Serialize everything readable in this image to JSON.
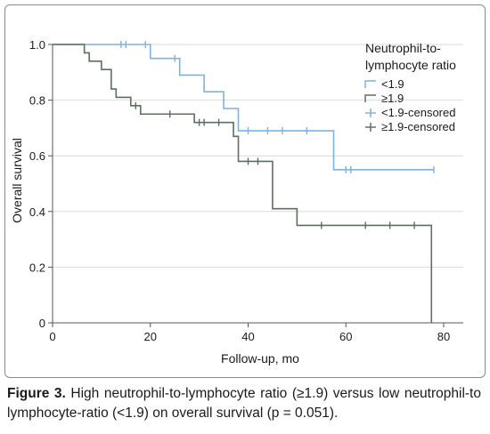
{
  "chart_data": {
    "type": "line",
    "xlabel": "Follow-up, mo",
    "ylabel": "Overall survival",
    "xlim": [
      0,
      80
    ],
    "ylim": [
      0,
      1.0
    ],
    "x_ticks": [
      "0",
      "20",
      "40",
      "60",
      "80"
    ],
    "y_ticks": [
      "0",
      "0.2",
      "0.4",
      "0.6",
      "0.8",
      "1.0"
    ],
    "grid": "horizontal",
    "legend_placement": "top-right",
    "legend_title": "Neutrophil-to-\nlymphocyte ratio",
    "legend_title_lines": [
      "Neutrophil-to-",
      "lymphocyte ratio"
    ],
    "series": [
      {
        "name": "<1.9",
        "censored_name": "<1.9-censored",
        "color": "#7fb2dc",
        "steps": [
          [
            0,
            1.0
          ],
          [
            20,
            0.95
          ],
          [
            26,
            0.89
          ],
          [
            31,
            0.83
          ],
          [
            35,
            0.77
          ],
          [
            38,
            0.69
          ],
          [
            57.5,
            0.55
          ],
          [
            78,
            0.55
          ]
        ],
        "censored": [
          [
            14,
            1.0
          ],
          [
            15,
            1.0
          ],
          [
            19,
            1.0
          ],
          [
            25,
            0.95
          ],
          [
            40,
            0.69
          ],
          [
            44,
            0.69
          ],
          [
            47,
            0.69
          ],
          [
            52,
            0.69
          ],
          [
            60,
            0.55
          ],
          [
            61,
            0.55
          ],
          [
            78,
            0.55
          ]
        ]
      },
      {
        "name": "≥1.9",
        "censored_name": "≥1.9-censored",
        "color": "#5e6e63",
        "steps": [
          [
            0,
            1.0
          ],
          [
            6.5,
            0.97
          ],
          [
            7.5,
            0.94
          ],
          [
            10,
            0.91
          ],
          [
            12,
            0.84
          ],
          [
            13,
            0.81
          ],
          [
            16,
            0.78
          ],
          [
            18,
            0.75
          ],
          [
            29,
            0.72
          ],
          [
            37,
            0.67
          ],
          [
            38,
            0.58
          ],
          [
            45,
            0.41
          ],
          [
            50,
            0.35
          ],
          [
            77.5,
            0.0
          ]
        ],
        "censored": [
          [
            17,
            0.78
          ],
          [
            24,
            0.75
          ],
          [
            30,
            0.72
          ],
          [
            31,
            0.72
          ],
          [
            34,
            0.72
          ],
          [
            40,
            0.58
          ],
          [
            42,
            0.58
          ],
          [
            55,
            0.35
          ],
          [
            64,
            0.35
          ],
          [
            69,
            0.35
          ],
          [
            74,
            0.35
          ]
        ]
      }
    ]
  },
  "caption": {
    "label": "Figure 3.",
    "text": " High neutrophil-to-lymphocyte ratio (≥1.9) versus low neutrophil-to lymphocyte-ratio (<1.9) on overall survival (p = 0.051)."
  }
}
